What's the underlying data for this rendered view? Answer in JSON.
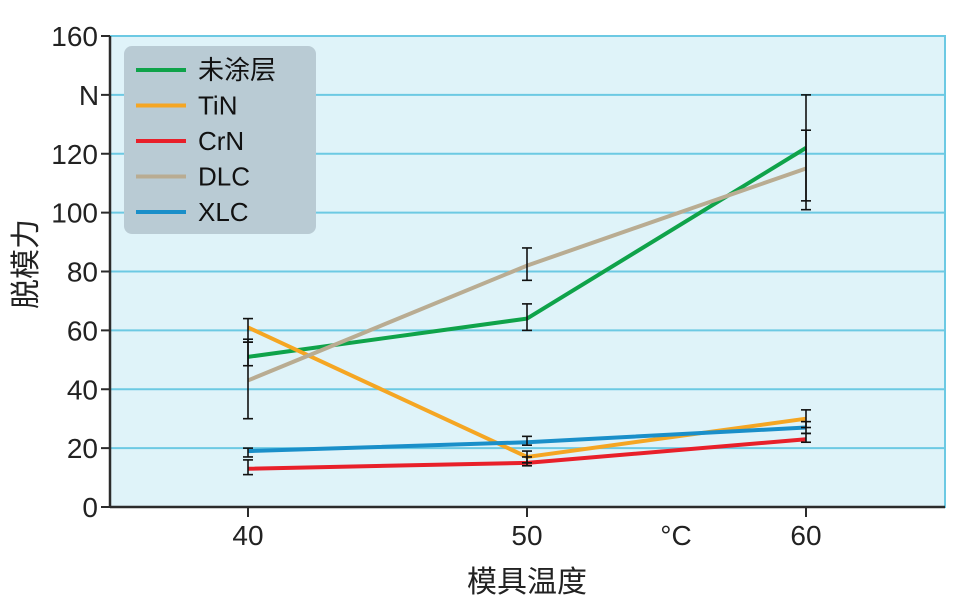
{
  "chart_data": {
    "type": "line",
    "xlabel": "模具温度",
    "ylabel": "脱模力",
    "y_unit": "N",
    "x_unit": "°C",
    "categories": [
      "40",
      "50",
      "60"
    ],
    "ylim": [
      0,
      160
    ],
    "y_ticks": [
      "0",
      "20",
      "40",
      "60",
      "80",
      "100",
      "120",
      "",
      "160"
    ],
    "grid": true,
    "legend_position": "top-left",
    "series": [
      {
        "name": "未涂层",
        "color": "#0fa34a",
        "values": [
          51,
          64,
          122
        ],
        "error_lo": [
          48,
          60,
          104
        ],
        "error_hi": [
          57,
          69,
          140
        ]
      },
      {
        "name": "TiN",
        "color": "#f5a623",
        "values": [
          61,
          17,
          30
        ],
        "error_lo": [
          56,
          15,
          27
        ],
        "error_hi": [
          64,
          19,
          33
        ]
      },
      {
        "name": "CrN",
        "color": "#e8202a",
        "values": [
          13,
          15,
          23
        ],
        "error_lo": [
          11,
          14,
          22
        ],
        "error_hi": [
          16,
          17,
          25
        ]
      },
      {
        "name": "DLC",
        "color": "#b9ac92",
        "values": [
          43,
          82,
          115
        ],
        "error_lo": [
          30,
          77,
          101
        ],
        "error_hi": [
          56,
          88,
          128
        ]
      },
      {
        "name": "XLC",
        "color": "#1a8fc9",
        "values": [
          19,
          22,
          27
        ],
        "error_lo": [
          17,
          21,
          25
        ],
        "error_hi": [
          20,
          24,
          29
        ]
      }
    ]
  },
  "colors": {
    "plot_background": "#dff3f9",
    "grid": "#6cc9e3",
    "plot_border": "#6cc9e3",
    "axis": "#2b2b2b",
    "legend_background": "#b9cbd4",
    "error_bar": "#111111"
  }
}
